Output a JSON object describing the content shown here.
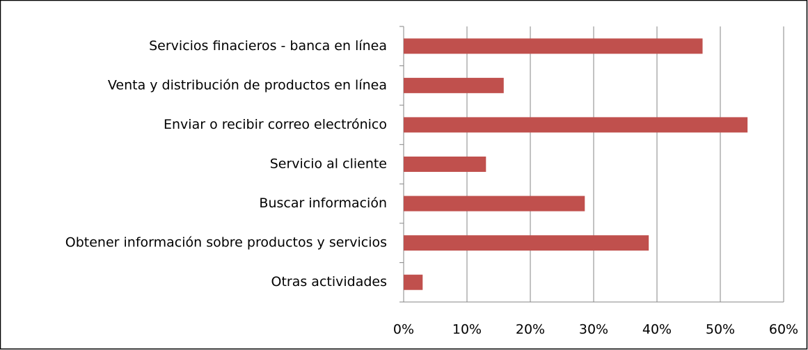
{
  "chart_data": {
    "type": "bar",
    "orientation": "horizontal",
    "categories": [
      "Servicios finacieros - banca en línea",
      "Venta y distribución de productos en línea",
      "Enviar o recibir correo electrónico",
      "Servicio al cliente",
      "Buscar información",
      "Obtener información sobre productos y servicios",
      "Otras actividades"
    ],
    "values": [
      47.2,
      15.8,
      54.3,
      13.0,
      28.6,
      38.7,
      3.0
    ],
    "color": "#c0504d",
    "xlim": [
      0,
      60
    ],
    "xticks": [
      {
        "value": 0,
        "label": "0%"
      },
      {
        "value": 10,
        "label": "10%"
      },
      {
        "value": 20,
        "label": "20%"
      },
      {
        "value": 30,
        "label": "30%"
      },
      {
        "value": 40,
        "label": "40%"
      },
      {
        "value": 50,
        "label": "50%"
      },
      {
        "value": 60,
        "label": "60%"
      }
    ],
    "grid": true
  }
}
